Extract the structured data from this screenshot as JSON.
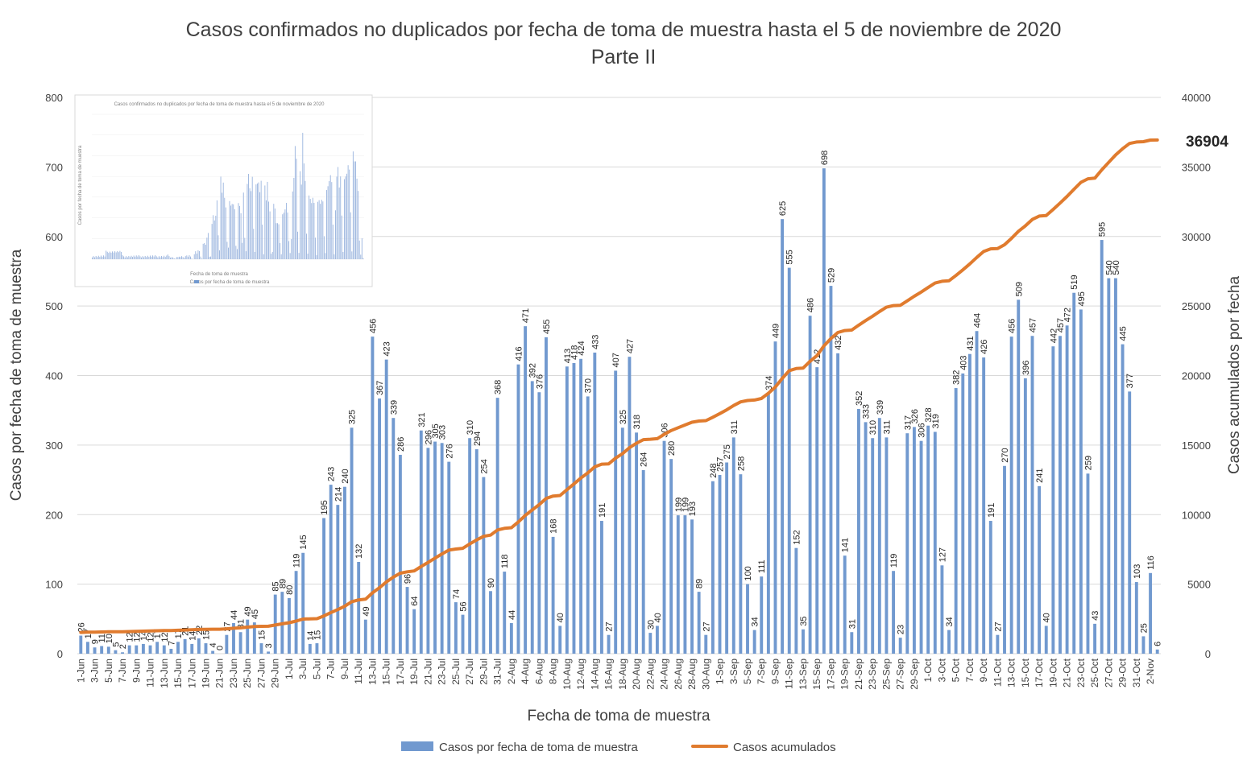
{
  "chart_data": {
    "type": "bar+line",
    "title": "Casos confirmados no duplicados por fecha de toma de muestra hasta el 5 de noviembre de 2020",
    "subtitle": "Parte II",
    "xlabel": "Fecha de toma de muestra",
    "ylabel_left": "Casos por fecha de toma de muestra",
    "ylabel_right": "Casos acumulados por fecha",
    "ylim_left": [
      0,
      800
    ],
    "ylim_right": [
      0,
      40000
    ],
    "yticks_left": [
      "0",
      "100",
      "200",
      "300",
      "400",
      "500",
      "600",
      "700",
      "800"
    ],
    "yticks_right": [
      "0",
      "5000",
      "10000",
      "15000",
      "20000",
      "25000",
      "30000",
      "35000",
      "40000"
    ],
    "x_tick_labels": [
      "1-Jun",
      "3-Jun",
      "5-Jun",
      "7-Jun",
      "9-Jun",
      "11-Jun",
      "13-Jun",
      "15-Jun",
      "17-Jun",
      "19-Jun",
      "21-Jun",
      "23-Jun",
      "25-Jun",
      "27-Jun",
      "29-Jun",
      "1-Jul",
      "3-Jul",
      "5-Jul",
      "7-Jul",
      "9-Jul",
      "11-Jul",
      "13-Jul",
      "15-Jul",
      "17-Jul",
      "19-Jul",
      "21-Jul",
      "23-Jul",
      "25-Jul",
      "27-Jul",
      "29-Jul",
      "31-Jul",
      "2-Aug",
      "4-Aug",
      "6-Aug",
      "8-Aug",
      "10-Aug",
      "12-Aug",
      "14-Aug",
      "16-Aug",
      "18-Aug",
      "20-Aug",
      "22-Aug",
      "24-Aug",
      "26-Aug",
      "28-Aug",
      "30-Aug",
      "1-Sep",
      "3-Sep",
      "5-Sep",
      "7-Sep",
      "9-Sep",
      "11-Sep",
      "13-Sep",
      "15-Sep",
      "17-Sep",
      "19-Sep",
      "21-Sep",
      "23-Sep",
      "25-Sep",
      "27-Sep",
      "29-Sep",
      "1-Oct",
      "3-Oct",
      "5-Oct",
      "7-Oct",
      "9-Oct",
      "11-Oct",
      "13-Oct",
      "15-Oct",
      "17-Oct",
      "19-Oct",
      "21-Oct",
      "23-Oct",
      "25-Oct",
      "27-Oct",
      "29-Oct",
      "31-Oct",
      "2-Nov"
    ],
    "grid": true,
    "legend_position": "bottom",
    "series": [
      {
        "name": "Casos por fecha de toma de muestra",
        "type": "bar",
        "axis": "left",
        "color": "#7199cf",
        "values": [
          26,
          17,
          9,
          11,
          10,
          5,
          2,
          12,
          12,
          14,
          12,
          17,
          12,
          7,
          17,
          21,
          14,
          22,
          15,
          4,
          0,
          27,
          44,
          31,
          49,
          45,
          15,
          3,
          85,
          89,
          80,
          119,
          145,
          14,
          15,
          195,
          243,
          214,
          240,
          325,
          132,
          49,
          456,
          367,
          423,
          339,
          286,
          96,
          64,
          321,
          296,
          305,
          303,
          276,
          74,
          56,
          310,
          294,
          254,
          90,
          368,
          118,
          44,
          416,
          471,
          392,
          376,
          455,
          168,
          40,
          413,
          418,
          424,
          370,
          433,
          191,
          27,
          407,
          325,
          427,
          318,
          264,
          30,
          40,
          306,
          280,
          199,
          199,
          193,
          89,
          27,
          248,
          257,
          275,
          311,
          258,
          100,
          34,
          111,
          374,
          449,
          625,
          555,
          152,
          35,
          486,
          412,
          698,
          529,
          432,
          141,
          31,
          352,
          333,
          310,
          339,
          311,
          119,
          23,
          317,
          326,
          306,
          328,
          319,
          127,
          34,
          382,
          403,
          431,
          464,
          426,
          191,
          27,
          270,
          456,
          509,
          396,
          457,
          241,
          40,
          442,
          457,
          472,
          519,
          495,
          259,
          43,
          595,
          540,
          540,
          445,
          377,
          103,
          25,
          116,
          6
        ]
      },
      {
        "name": "Casos acumulados",
        "type": "line",
        "axis": "right",
        "color": "#e07b2e",
        "final_value": "36904"
      }
    ],
    "cumulative_base": 1500
  },
  "inset": {
    "title": "Casos confirmados no duplicados por fecha de toma de muestra hasta el 5 de noviembre de 2020",
    "xlabel": "Fecha de toma de muestra",
    "ylabel": "Casos por fecha de toma de muestra",
    "legend": "Casos por fecha de toma de muestra"
  }
}
